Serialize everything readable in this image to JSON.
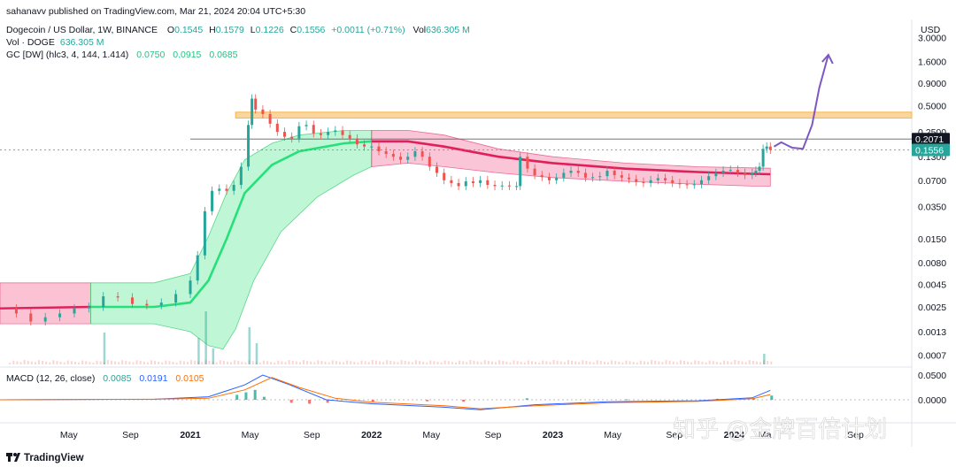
{
  "publisher_line": "sahanavv published on TradingView.com, Mar 21, 2024 20:04 UTC+5:30",
  "symbol_line": {
    "title": "Dogecoin / US Dollar, 1W, BINANCE",
    "o_label": "O",
    "o": "0.1545",
    "h_label": "H",
    "h": "0.1579",
    "l_label": "L",
    "l": "0.1226",
    "c_label": "C",
    "c": "0.1556",
    "change": "+0.0011 (+0.71%)",
    "vol_label": "Vol",
    "vol": "636.305 M"
  },
  "vol_line": {
    "label": "Vol · DOGE",
    "value": "636.305 M"
  },
  "gc_line": {
    "label": "GC [DW] (hlc3, 4, 144, 1.414)",
    "v1": "0.0750",
    "v2": "0.0915",
    "v3": "0.0685"
  },
  "macd_line": {
    "label": "MACD (12, 26, close)",
    "v1": "0.0085",
    "v2": "0.0191",
    "v3": "0.0105"
  },
  "currency": "USD",
  "price_badges": {
    "upper": "0.2071",
    "current": "0.1556"
  },
  "footer_brand": "TradingView",
  "watermark": "知乎 @金牌百倍计划",
  "colors": {
    "up": "#26a69a",
    "down": "#ef5350",
    "channel_green": "#26e07a",
    "channel_red": "#e0205a",
    "resistance": "#f7b54a",
    "projection": "#7e57c2",
    "macd_blue": "#2962ff",
    "macd_orange": "#ff6d00"
  },
  "chart_data": {
    "type": "candlestick",
    "title": "Dogecoin / US Dollar, 1W, BINANCE",
    "price_scale": "log",
    "y_ticks": [
      "3.0000",
      "1.6000",
      "0.9000",
      "0.5000",
      "0.2500",
      "0.1300",
      "0.0700",
      "0.0350",
      "0.0150",
      "0.0080",
      "0.0045",
      "0.0025",
      "0.0013",
      "0.0007"
    ],
    "y_tick_values": [
      3.0,
      1.6,
      0.9,
      0.5,
      0.25,
      0.13,
      0.07,
      0.035,
      0.015,
      0.008,
      0.0045,
      0.0025,
      0.0013,
      0.0007
    ],
    "x_ticks": [
      "May",
      "Sep",
      "2021",
      "May",
      "Sep",
      "2022",
      "May",
      "Sep",
      "2023",
      "May",
      "Sep",
      "2024",
      "Ma",
      "Sep"
    ],
    "x_tick_time": [
      2020.33,
      2020.67,
      2021.0,
      2021.33,
      2021.67,
      2022.0,
      2022.33,
      2022.67,
      2023.0,
      2023.33,
      2023.67,
      2024.0,
      2024.17,
      2024.67
    ],
    "x_range": [
      2019.95,
      2024.98
    ],
    "y_range": [
      0.00055,
      4.0
    ],
    "resistance_zone": [
      0.36,
      0.42
    ],
    "horizontal_line": 0.2071,
    "last_price": 0.1556,
    "candles": [
      [
        2019.96,
        0.0024
      ],
      [
        2020.04,
        0.0021
      ],
      [
        2020.12,
        0.0017
      ],
      [
        2020.2,
        0.0019
      ],
      [
        2020.28,
        0.0021
      ],
      [
        2020.36,
        0.0024
      ],
      [
        2020.44,
        0.0025
      ],
      [
        2020.52,
        0.0033
      ],
      [
        2020.6,
        0.0032
      ],
      [
        2020.68,
        0.0027
      ],
      [
        2020.76,
        0.0026
      ],
      [
        2020.84,
        0.0028
      ],
      [
        2020.92,
        0.0035
      ],
      [
        2021.0,
        0.005
      ],
      [
        2021.04,
        0.0097
      ],
      [
        2021.08,
        0.031
      ],
      [
        2021.12,
        0.053
      ],
      [
        2021.16,
        0.056
      ],
      [
        2021.2,
        0.053
      ],
      [
        2021.24,
        0.062
      ],
      [
        2021.28,
        0.1
      ],
      [
        2021.32,
        0.3
      ],
      [
        2021.34,
        0.6
      ],
      [
        2021.36,
        0.45
      ],
      [
        2021.4,
        0.4
      ],
      [
        2021.44,
        0.31
      ],
      [
        2021.48,
        0.25
      ],
      [
        2021.52,
        0.22
      ],
      [
        2021.56,
        0.21
      ],
      [
        2021.6,
        0.29
      ],
      [
        2021.64,
        0.3
      ],
      [
        2021.68,
        0.24
      ],
      [
        2021.72,
        0.23
      ],
      [
        2021.76,
        0.25
      ],
      [
        2021.8,
        0.26
      ],
      [
        2021.84,
        0.23
      ],
      [
        2021.88,
        0.21
      ],
      [
        2021.92,
        0.18
      ],
      [
        2021.96,
        0.17
      ],
      [
        2022.0,
        0.17
      ],
      [
        2022.04,
        0.15
      ],
      [
        2022.08,
        0.14
      ],
      [
        2022.12,
        0.13
      ],
      [
        2022.16,
        0.12
      ],
      [
        2022.2,
        0.13
      ],
      [
        2022.24,
        0.15
      ],
      [
        2022.28,
        0.13
      ],
      [
        2022.32,
        0.1
      ],
      [
        2022.36,
        0.085
      ],
      [
        2022.4,
        0.07
      ],
      [
        2022.44,
        0.065
      ],
      [
        2022.48,
        0.06
      ],
      [
        2022.52,
        0.068
      ],
      [
        2022.56,
        0.065
      ],
      [
        2022.6,
        0.07
      ],
      [
        2022.64,
        0.062
      ],
      [
        2022.68,
        0.06
      ],
      [
        2022.72,
        0.061
      ],
      [
        2022.76,
        0.06
      ],
      [
        2022.8,
        0.06
      ],
      [
        2022.82,
        0.13
      ],
      [
        2022.86,
        0.095
      ],
      [
        2022.9,
        0.08
      ],
      [
        2022.94,
        0.076
      ],
      [
        2022.98,
        0.07
      ],
      [
        2023.02,
        0.075
      ],
      [
        2023.06,
        0.085
      ],
      [
        2023.1,
        0.09
      ],
      [
        2023.14,
        0.085
      ],
      [
        2023.18,
        0.075
      ],
      [
        2023.22,
        0.076
      ],
      [
        2023.26,
        0.078
      ],
      [
        2023.3,
        0.09
      ],
      [
        2023.34,
        0.08
      ],
      [
        2023.38,
        0.075
      ],
      [
        2023.42,
        0.072
      ],
      [
        2023.46,
        0.067
      ],
      [
        2023.5,
        0.065
      ],
      [
        2023.54,
        0.07
      ],
      [
        2023.58,
        0.074
      ],
      [
        2023.62,
        0.07
      ],
      [
        2023.66,
        0.065
      ],
      [
        2023.7,
        0.063
      ],
      [
        2023.74,
        0.062
      ],
      [
        2023.78,
        0.063
      ],
      [
        2023.82,
        0.07
      ],
      [
        2023.86,
        0.078
      ],
      [
        2023.9,
        0.085
      ],
      [
        2023.94,
        0.09
      ],
      [
        2023.98,
        0.092
      ],
      [
        2024.02,
        0.085
      ],
      [
        2024.06,
        0.08
      ],
      [
        2024.1,
        0.085
      ],
      [
        2024.12,
        0.09
      ],
      [
        2024.14,
        0.1
      ],
      [
        2024.16,
        0.16
      ],
      [
        2024.18,
        0.17
      ],
      [
        2024.2,
        0.1556
      ]
    ],
    "channel_upper": [
      [
        2019.95,
        0.0047
      ],
      [
        2020.45,
        0.0047
      ],
      [
        2020.8,
        0.0047
      ],
      [
        2021.0,
        0.006
      ],
      [
        2021.1,
        0.016
      ],
      [
        2021.2,
        0.05
      ],
      [
        2021.3,
        0.12
      ],
      [
        2021.45,
        0.185
      ],
      [
        2021.6,
        0.23
      ],
      [
        2021.85,
        0.26
      ],
      [
        2022.0,
        0.26
      ],
      [
        2022.2,
        0.26
      ],
      [
        2022.4,
        0.23
      ],
      [
        2022.7,
        0.16
      ],
      [
        2023.0,
        0.13
      ],
      [
        2023.4,
        0.11
      ],
      [
        2023.8,
        0.1
      ],
      [
        2024.1,
        0.097
      ],
      [
        2024.2,
        0.096
      ]
    ],
    "channel_mid": [
      [
        2019.95,
        0.0024
      ],
      [
        2020.45,
        0.0025
      ],
      [
        2020.8,
        0.0025
      ],
      [
        2021.0,
        0.0028
      ],
      [
        2021.1,
        0.005
      ],
      [
        2021.2,
        0.015
      ],
      [
        2021.3,
        0.05
      ],
      [
        2021.45,
        0.105
      ],
      [
        2021.6,
        0.15
      ],
      [
        2021.85,
        0.185
      ],
      [
        2022.0,
        0.195
      ],
      [
        2022.2,
        0.195
      ],
      [
        2022.4,
        0.17
      ],
      [
        2022.7,
        0.13
      ],
      [
        2023.0,
        0.11
      ],
      [
        2023.4,
        0.095
      ],
      [
        2023.8,
        0.087
      ],
      [
        2024.1,
        0.083
      ],
      [
        2024.2,
        0.082
      ]
    ],
    "channel_lower": [
      [
        2019.95,
        0.0016
      ],
      [
        2020.45,
        0.0016
      ],
      [
        2020.8,
        0.0016
      ],
      [
        2021.0,
        0.0013
      ],
      [
        2021.1,
        0.0009
      ],
      [
        2021.18,
        0.00082
      ],
      [
        2021.25,
        0.0014
      ],
      [
        2021.35,
        0.005
      ],
      [
        2021.5,
        0.018
      ],
      [
        2021.7,
        0.045
      ],
      [
        2021.9,
        0.08
      ],
      [
        2022.0,
        0.1
      ],
      [
        2022.2,
        0.11
      ],
      [
        2022.4,
        0.1
      ],
      [
        2022.7,
        0.085
      ],
      [
        2023.0,
        0.075
      ],
      [
        2023.4,
        0.068
      ],
      [
        2023.8,
        0.063
      ],
      [
        2024.1,
        0.06
      ],
      [
        2024.2,
        0.06
      ]
    ],
    "projection_path": [
      [
        2024.22,
        0.17
      ],
      [
        2024.26,
        0.19
      ],
      [
        2024.32,
        0.165
      ],
      [
        2024.38,
        0.16
      ],
      [
        2024.43,
        0.3
      ],
      [
        2024.47,
        0.8
      ],
      [
        2024.52,
        1.9
      ]
    ],
    "volume": [
      [
        2021.04,
        0.5
      ],
      [
        2021.08,
        1.0
      ],
      [
        2021.12,
        0.3
      ],
      [
        2021.32,
        0.7
      ],
      [
        2021.36,
        0.4
      ],
      [
        2020.52,
        0.6
      ],
      [
        2024.16,
        0.2
      ]
    ],
    "macd": {
      "zero_line": 0.0,
      "y_ticks": [
        "0.0500",
        "0.0000"
      ],
      "macd_series": [
        [
          2019.95,
          0.0
        ],
        [
          2020.8,
          0.001
        ],
        [
          2021.1,
          0.006
        ],
        [
          2021.3,
          0.03
        ],
        [
          2021.4,
          0.05
        ],
        [
          2021.55,
          0.03
        ],
        [
          2021.75,
          0.0
        ],
        [
          2022.0,
          -0.008
        ],
        [
          2022.4,
          -0.015
        ],
        [
          2022.6,
          -0.02
        ],
        [
          2022.9,
          -0.01
        ],
        [
          2023.3,
          -0.004
        ],
        [
          2023.8,
          -0.002
        ],
        [
          2024.1,
          0.004
        ],
        [
          2024.2,
          0.0191
        ]
      ],
      "signal_series": [
        [
          2019.95,
          0.0
        ],
        [
          2020.8,
          0.001
        ],
        [
          2021.1,
          0.003
        ],
        [
          2021.3,
          0.02
        ],
        [
          2021.45,
          0.045
        ],
        [
          2021.6,
          0.025
        ],
        [
          2021.8,
          0.003
        ],
        [
          2022.0,
          -0.005
        ],
        [
          2022.4,
          -0.012
        ],
        [
          2022.6,
          -0.018
        ],
        [
          2022.9,
          -0.012
        ],
        [
          2023.3,
          -0.006
        ],
        [
          2023.8,
          -0.003
        ],
        [
          2024.1,
          0.002
        ],
        [
          2024.2,
          0.0105
        ]
      ],
      "histogram": [
        [
          2021.25,
          0.01
        ],
        [
          2021.3,
          0.015
        ],
        [
          2021.35,
          0.02
        ],
        [
          2021.4,
          0.006
        ],
        [
          2021.55,
          -0.006
        ],
        [
          2021.65,
          -0.008
        ],
        [
          2021.75,
          -0.006
        ],
        [
          2022.0,
          -0.004
        ],
        [
          2022.3,
          -0.003
        ],
        [
          2022.5,
          -0.004
        ],
        [
          2022.85,
          0.003
        ],
        [
          2023.4,
          0.001
        ],
        [
          2023.9,
          0.002
        ],
        [
          2024.1,
          0.003
        ],
        [
          2024.2,
          0.0085
        ]
      ]
    }
  }
}
